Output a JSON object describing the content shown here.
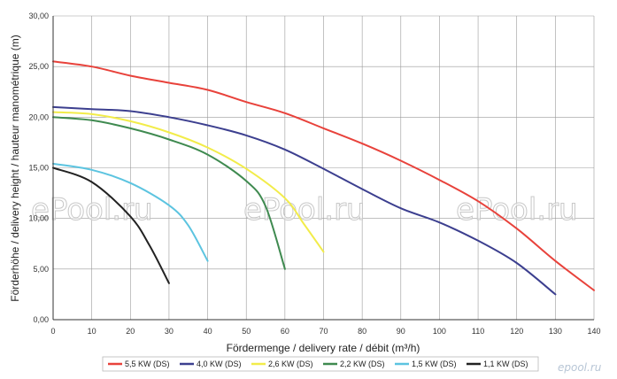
{
  "chart_data": {
    "type": "line",
    "xlabel": "Fördermenge / delivery rate / débit (m³/h)",
    "ylabel": "Förderhöhe / delivery height / hauteur manométrique (m)",
    "xlim": [
      0,
      140
    ],
    "ylim": [
      0,
      30
    ],
    "x_ticks": [
      "0",
      "10",
      "20",
      "30",
      "40",
      "50",
      "60",
      "70",
      "80",
      "90",
      "100",
      "110",
      "120",
      "130",
      "140"
    ],
    "y_ticks": [
      "0,00",
      "5,00",
      "10,00",
      "15,00",
      "20,00",
      "25,00",
      "30,00"
    ],
    "grid": true,
    "legend_position": "bottom",
    "series": [
      {
        "name": "5,5 KW (DS)",
        "color": "#e8423b",
        "points": [
          [
            0,
            25.5
          ],
          [
            10,
            25.0
          ],
          [
            20,
            24.1
          ],
          [
            30,
            23.4
          ],
          [
            40,
            22.7
          ],
          [
            50,
            21.5
          ],
          [
            60,
            20.4
          ],
          [
            70,
            18.9
          ],
          [
            80,
            17.4
          ],
          [
            90,
            15.7
          ],
          [
            100,
            13.8
          ],
          [
            110,
            11.7
          ],
          [
            120,
            9.0
          ],
          [
            130,
            5.8
          ],
          [
            140,
            2.9
          ]
        ]
      },
      {
        "name": "4,0 KW (DS)",
        "color": "#3c3f8f",
        "points": [
          [
            0,
            21.0
          ],
          [
            10,
            20.8
          ],
          [
            20,
            20.6
          ],
          [
            30,
            20.0
          ],
          [
            40,
            19.2
          ],
          [
            50,
            18.2
          ],
          [
            60,
            16.8
          ],
          [
            70,
            14.9
          ],
          [
            80,
            12.9
          ],
          [
            90,
            11.0
          ],
          [
            100,
            9.6
          ],
          [
            110,
            7.8
          ],
          [
            120,
            5.6
          ],
          [
            130,
            2.5
          ]
        ]
      },
      {
        "name": "2,6 KW (DS)",
        "color": "#f2ec4a",
        "points": [
          [
            0,
            20.5
          ],
          [
            10,
            20.3
          ],
          [
            20,
            19.6
          ],
          [
            30,
            18.5
          ],
          [
            40,
            17.0
          ],
          [
            50,
            14.9
          ],
          [
            60,
            12.0
          ],
          [
            65,
            9.4
          ],
          [
            70,
            6.7
          ]
        ]
      },
      {
        "name": "2,2 KW (DS)",
        "color": "#3f8a50",
        "points": [
          [
            0,
            20.0
          ],
          [
            10,
            19.7
          ],
          [
            20,
            18.9
          ],
          [
            30,
            17.8
          ],
          [
            40,
            16.3
          ],
          [
            50,
            13.7
          ],
          [
            55,
            11.2
          ],
          [
            60,
            5.0
          ]
        ]
      },
      {
        "name": "1,5 KW (DS)",
        "color": "#5cc4e0",
        "points": [
          [
            0,
            15.4
          ],
          [
            10,
            14.8
          ],
          [
            20,
            13.5
          ],
          [
            30,
            11.3
          ],
          [
            35,
            9.3
          ],
          [
            40,
            5.8
          ]
        ]
      },
      {
        "name": "1,1 KW (DS)",
        "color": "#222222",
        "points": [
          [
            0,
            15.0
          ],
          [
            10,
            13.6
          ],
          [
            20,
            10.2
          ],
          [
            25,
            7.3
          ],
          [
            30,
            3.6
          ]
        ]
      }
    ]
  },
  "watermarks": [
    "ePool.ru",
    "ePool.ru",
    "ePool.ru"
  ],
  "logo_text": "epool.ru"
}
